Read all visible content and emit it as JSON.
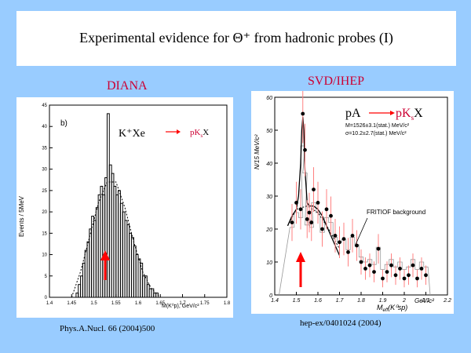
{
  "slide": {
    "title": "Experimental evidence for Θ⁺ from hadronic probes (I)",
    "background_color": "#99ccff"
  },
  "left_panel": {
    "experiment": "DIANA",
    "panel_tag": "b)",
    "ylabel": "Events / 5MeV",
    "xlabel": "M(K⁰p), GeV/c²",
    "reaction_lhs": "K⁺Xe",
    "reaction_rhs": "pK",
    "reaction_rhs_sub": "s",
    "reaction_rhs_end": "X",
    "reference": "Phys.A.Nucl. 66 (2004)500",
    "arrow_color": "#ff0000"
  },
  "right_panel": {
    "experiment": "SVD/IHEP",
    "ylabel": "N/15 MeV/c²",
    "xlabel": "M",
    "xlabel_sub": "eff",
    "xlabel_tail": "(K⁰sp)",
    "xunit": "GeV/c²",
    "reaction_lhs": "pA",
    "reaction_rhs": "pK",
    "reaction_rhs_sub": "s",
    "reaction_rhs_end": "X",
    "fit_mass": "M=1526±3.1(stat.) MeV/c²",
    "fit_sigma": "σ=10.2±2.7(stat.) MeV/c²",
    "background_label": "FRITIOF background",
    "reference": "hep-ex/0401024 (2004)",
    "arrow_color": "#ff0000"
  },
  "chart_data": [
    {
      "type": "bar",
      "ylim": [
        0,
        45
      ],
      "xlim": [
        1.4,
        1.8
      ],
      "xticks": [
        "1.4",
        "1.45",
        "1.5",
        "1.55",
        "1.6",
        "1.65",
        "1.7",
        "1.75",
        "1.8"
      ],
      "yticks": [
        "0",
        "5",
        "10",
        "15",
        "20",
        "25",
        "30",
        "35",
        "40",
        "45"
      ],
      "bin_width": 0.005,
      "x": [
        1.46,
        1.465,
        1.47,
        1.475,
        1.48,
        1.485,
        1.49,
        1.495,
        1.5,
        1.505,
        1.51,
        1.515,
        1.52,
        1.525,
        1.53,
        1.535,
        1.54,
        1.545,
        1.55,
        1.555,
        1.56,
        1.565,
        1.57,
        1.575,
        1.58,
        1.585,
        1.59,
        1.595,
        1.6,
        1.605,
        1.61,
        1.615,
        1.62,
        1.625,
        1.63,
        1.635,
        1.64,
        1.645
      ],
      "values": [
        1,
        3,
        5,
        8,
        11,
        13,
        16,
        19,
        18,
        21,
        24,
        26,
        24,
        28,
        43,
        31,
        29,
        26,
        24,
        25,
        22,
        20,
        18,
        17,
        15,
        14,
        12,
        10,
        9,
        8,
        5,
        5,
        3,
        2,
        2,
        1,
        1,
        0
      ],
      "background_curve": {
        "x": [
          1.45,
          1.47,
          1.49,
          1.51,
          1.53,
          1.55,
          1.57,
          1.59,
          1.61,
          1.63,
          1.65
        ],
        "y": [
          0,
          6,
          14,
          22,
          27,
          27,
          21,
          13,
          6,
          2,
          0
        ]
      }
    },
    {
      "type": "scatter",
      "ylim": [
        0,
        60
      ],
      "xlim": [
        1.4,
        2.2
      ],
      "xticks": [
        "1.4",
        "1.5",
        "1.6",
        "1.7",
        "1.8",
        "1.9",
        "2",
        "2.1",
        "2.2"
      ],
      "yticks": [
        "0",
        "10",
        "20",
        "30",
        "40",
        "50",
        "60"
      ],
      "x": [
        1.48,
        1.5,
        1.52,
        1.53,
        1.54,
        1.55,
        1.56,
        1.57,
        1.58,
        1.6,
        1.62,
        1.64,
        1.66,
        1.68,
        1.7,
        1.72,
        1.74,
        1.76,
        1.78,
        1.8,
        1.82,
        1.84,
        1.86,
        1.88,
        1.9,
        1.92,
        1.94,
        1.96,
        1.98,
        2.0,
        2.02,
        2.04,
        2.06,
        2.08,
        2.1
      ],
      "y": [
        22,
        28,
        26,
        55,
        44,
        23,
        25,
        22,
        32,
        28,
        20,
        26,
        24,
        18,
        16,
        17,
        13,
        18,
        15,
        10,
        8,
        9,
        7,
        14,
        5,
        7,
        9,
        6,
        8,
        5,
        6,
        9,
        5,
        8,
        6
      ],
      "fit_curve": {
        "x": [
          1.46,
          1.48,
          1.5,
          1.51,
          1.52,
          1.525,
          1.53,
          1.535,
          1.54,
          1.55,
          1.56,
          1.58,
          1.6,
          1.62,
          1.64,
          1.66,
          1.68,
          1.7
        ],
        "y": [
          21,
          24,
          26,
          30,
          40,
          50,
          54,
          50,
          38,
          28,
          27,
          27,
          26,
          24,
          21,
          18,
          15,
          12
        ]
      },
      "background_curve": {
        "x": [
          1.46,
          1.5,
          1.55,
          1.6,
          1.65,
          1.7
        ],
        "y": [
          21,
          26,
          27,
          25,
          20,
          14
        ]
      }
    }
  ]
}
